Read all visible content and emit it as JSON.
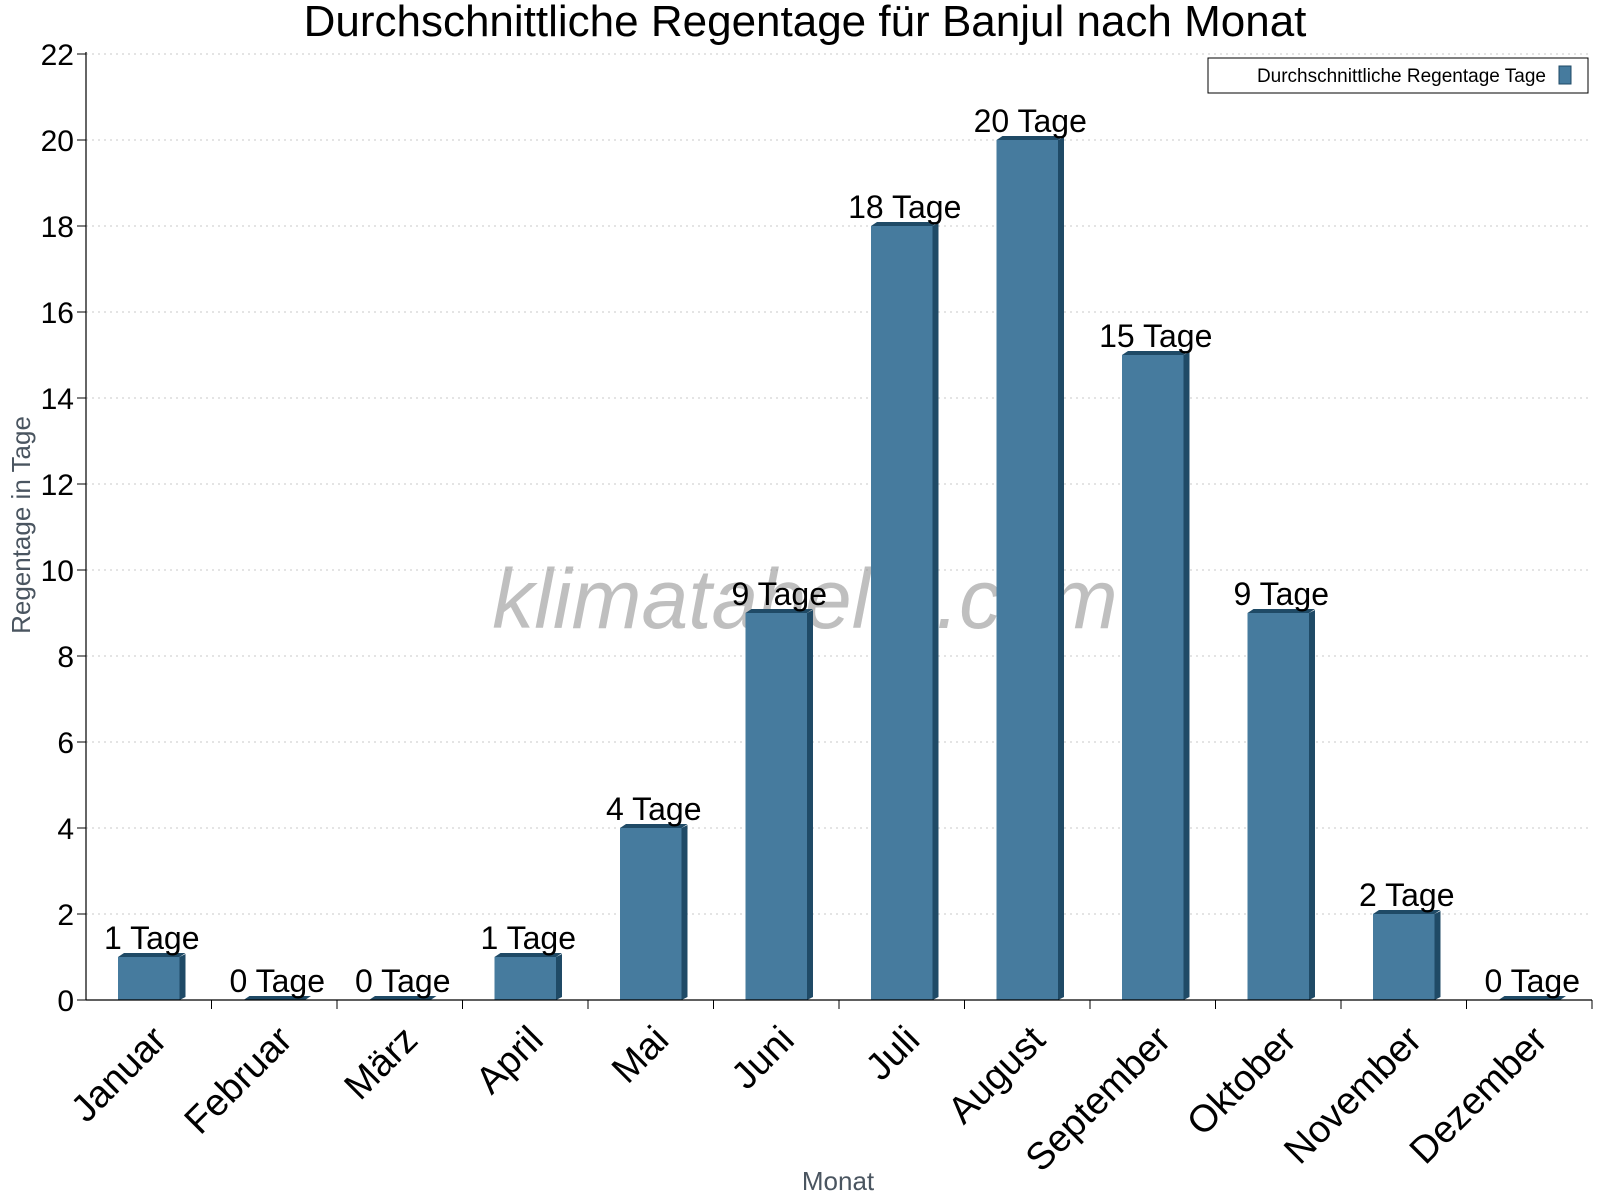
{
  "chart_data": {
    "type": "bar",
    "title": "Durchschnittliche Regentage für Banjul nach Monat",
    "xlabel": "Monat",
    "ylabel": "Regentage in Tage",
    "ylim": [
      0,
      22
    ],
    "yticks": [
      0,
      2,
      4,
      6,
      8,
      10,
      12,
      14,
      16,
      18,
      20,
      22
    ],
    "grid": true,
    "legend_position": "top-right",
    "categories": [
      "Januar",
      "Februar",
      "März",
      "April",
      "Mai",
      "Juni",
      "Juli",
      "August",
      "September",
      "Oktober",
      "November",
      "Dezember"
    ],
    "series": [
      {
        "name": "Durchschnittliche Regentage Tage",
        "values": [
          1,
          0,
          0,
          1,
          4,
          9,
          18,
          20,
          15,
          9,
          2,
          0
        ],
        "labels": [
          "1 Tage",
          "0 Tage",
          "0 Tage",
          "1 Tage",
          "4 Tage",
          "9 Tage",
          "18 Tage",
          "20 Tage",
          "15 Tage",
          "9 Tage",
          "2 Tage",
          "0 Tage"
        ],
        "color": "#467b9e",
        "shade_color": "#1f4a66"
      }
    ],
    "watermark": "klimatabelle.com"
  }
}
